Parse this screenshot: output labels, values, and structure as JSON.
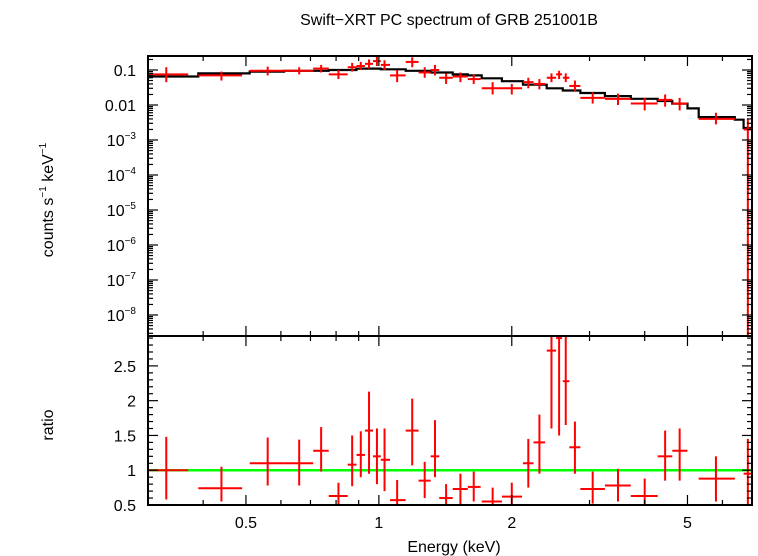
{
  "chart_data": {
    "title": "Swift−XRT PC spectrum of GRB 251001B",
    "xlabel": "Energy (keV)",
    "type": "scatter",
    "x_scale": "log",
    "xlim": [
      0.3,
      7.0
    ],
    "x_ticks": [
      {
        "value": 0.5,
        "label": "0.5"
      },
      {
        "value": 1,
        "label": "1"
      },
      {
        "value": 2,
        "label": "2"
      },
      {
        "value": 5,
        "label": "5"
      }
    ],
    "top_panel": {
      "ylabel": {
        "pre": "counts s",
        "sup1": "−1",
        "mid": " keV",
        "sup2": "−1"
      },
      "y_scale": "log",
      "ylim_log10": [
        -8.6,
        -0.6
      ],
      "y_ticks": [
        {
          "exp": -1,
          "base": "0.1",
          "sup": ""
        },
        {
          "exp": -2,
          "base": "0.01",
          "sup": ""
        },
        {
          "exp": -3,
          "base": "10",
          "sup": "−3"
        },
        {
          "exp": -4,
          "base": "10",
          "sup": "−4"
        },
        {
          "exp": -5,
          "base": "10",
          "sup": "−5"
        },
        {
          "exp": -6,
          "base": "10",
          "sup": "−6"
        },
        {
          "exp": -7,
          "base": "10",
          "sup": "−7"
        },
        {
          "exp": -8,
          "base": "10",
          "sup": "−8"
        }
      ],
      "data_series": {
        "name": "data",
        "color": "#ff0000",
        "points": [
          {
            "x": 0.33,
            "xlo": 0.3,
            "xhi": 0.37,
            "y": 0.075,
            "ylo": 0.045,
            "yhi": 0.12
          },
          {
            "x": 0.44,
            "xlo": 0.39,
            "xhi": 0.49,
            "y": 0.07,
            "ylo": 0.05,
            "yhi": 0.09
          },
          {
            "x": 0.56,
            "xlo": 0.51,
            "xhi": 0.61,
            "y": 0.095,
            "ylo": 0.07,
            "yhi": 0.125
          },
          {
            "x": 0.66,
            "xlo": 0.61,
            "xhi": 0.71,
            "y": 0.095,
            "ylo": 0.075,
            "yhi": 0.12
          },
          {
            "x": 0.74,
            "xlo": 0.71,
            "xhi": 0.77,
            "y": 0.11,
            "ylo": 0.085,
            "yhi": 0.14
          },
          {
            "x": 0.81,
            "xlo": 0.77,
            "xhi": 0.85,
            "y": 0.075,
            "ylo": 0.055,
            "yhi": 0.1
          },
          {
            "x": 0.87,
            "xlo": 0.85,
            "xhi": 0.89,
            "y": 0.12,
            "ylo": 0.09,
            "yhi": 0.16
          },
          {
            "x": 0.91,
            "xlo": 0.89,
            "xhi": 0.93,
            "y": 0.13,
            "ylo": 0.1,
            "yhi": 0.17
          },
          {
            "x": 0.95,
            "xlo": 0.93,
            "xhi": 0.97,
            "y": 0.15,
            "ylo": 0.11,
            "yhi": 0.2
          },
          {
            "x": 0.99,
            "xlo": 0.97,
            "xhi": 1.01,
            "y": 0.18,
            "ylo": 0.13,
            "yhi": 0.24
          },
          {
            "x": 1.03,
            "xlo": 1.01,
            "xhi": 1.06,
            "y": 0.14,
            "ylo": 0.1,
            "yhi": 0.19
          },
          {
            "x": 1.1,
            "xlo": 1.06,
            "xhi": 1.15,
            "y": 0.07,
            "ylo": 0.045,
            "yhi": 0.1
          },
          {
            "x": 1.19,
            "xlo": 1.15,
            "xhi": 1.23,
            "y": 0.17,
            "ylo": 0.12,
            "yhi": 0.23
          },
          {
            "x": 1.27,
            "xlo": 1.23,
            "xhi": 1.31,
            "y": 0.085,
            "ylo": 0.06,
            "yhi": 0.12
          },
          {
            "x": 1.34,
            "xlo": 1.31,
            "xhi": 1.37,
            "y": 0.1,
            "ylo": 0.07,
            "yhi": 0.14
          },
          {
            "x": 1.42,
            "xlo": 1.37,
            "xhi": 1.47,
            "y": 0.06,
            "ylo": 0.04,
            "yhi": 0.08
          },
          {
            "x": 1.53,
            "xlo": 1.47,
            "xhi": 1.59,
            "y": 0.065,
            "ylo": 0.045,
            "yhi": 0.085
          },
          {
            "x": 1.64,
            "xlo": 1.59,
            "xhi": 1.7,
            "y": 0.055,
            "ylo": 0.04,
            "yhi": 0.075
          },
          {
            "x": 1.81,
            "xlo": 1.71,
            "xhi": 1.9,
            "y": 0.03,
            "ylo": 0.02,
            "yhi": 0.045
          },
          {
            "x": 2.0,
            "xlo": 1.9,
            "xhi": 2.11,
            "y": 0.03,
            "ylo": 0.02,
            "yhi": 0.04
          },
          {
            "x": 2.18,
            "xlo": 2.12,
            "xhi": 2.24,
            "y": 0.045,
            "ylo": 0.03,
            "yhi": 0.06
          },
          {
            "x": 2.31,
            "xlo": 2.24,
            "xhi": 2.38,
            "y": 0.04,
            "ylo": 0.028,
            "yhi": 0.055
          },
          {
            "x": 2.46,
            "xlo": 2.4,
            "xhi": 2.52,
            "y": 0.06,
            "ylo": 0.045,
            "yhi": 0.08
          },
          {
            "x": 2.56,
            "xlo": 2.52,
            "xhi": 2.6,
            "y": 0.075,
            "ylo": 0.055,
            "yhi": 0.095
          },
          {
            "x": 2.65,
            "xlo": 2.61,
            "xhi": 2.7,
            "y": 0.06,
            "ylo": 0.045,
            "yhi": 0.08
          },
          {
            "x": 2.78,
            "xlo": 2.7,
            "xhi": 2.86,
            "y": 0.035,
            "ylo": 0.025,
            "yhi": 0.05
          },
          {
            "x": 3.05,
            "xlo": 2.86,
            "xhi": 3.25,
            "y": 0.016,
            "ylo": 0.011,
            "yhi": 0.023
          },
          {
            "x": 3.48,
            "xlo": 3.25,
            "xhi": 3.72,
            "y": 0.015,
            "ylo": 0.01,
            "yhi": 0.021
          },
          {
            "x": 4.0,
            "xlo": 3.72,
            "xhi": 4.28,
            "y": 0.011,
            "ylo": 0.007,
            "yhi": 0.016
          },
          {
            "x": 4.45,
            "xlo": 4.28,
            "xhi": 4.62,
            "y": 0.014,
            "ylo": 0.009,
            "yhi": 0.02
          },
          {
            "x": 4.8,
            "xlo": 4.62,
            "xhi": 5.0,
            "y": 0.011,
            "ylo": 0.007,
            "yhi": 0.016
          },
          {
            "x": 5.8,
            "xlo": 5.3,
            "xhi": 6.4,
            "y": 0.004,
            "ylo": 0.0028,
            "yhi": 0.006
          },
          {
            "x": 6.85,
            "xlo": 6.7,
            "xhi": 7.0,
            "y": 0.002,
            "ylo": 2.5e-09,
            "yhi": 0.004
          }
        ]
      },
      "model_series": {
        "name": "model",
        "color": "#000000",
        "steps": [
          {
            "xlo": 0.3,
            "xhi": 0.39,
            "y": 0.065
          },
          {
            "xlo": 0.39,
            "xhi": 0.51,
            "y": 0.08
          },
          {
            "xlo": 0.51,
            "xhi": 0.61,
            "y": 0.09
          },
          {
            "xlo": 0.61,
            "xhi": 0.77,
            "y": 0.095
          },
          {
            "xlo": 0.77,
            "xhi": 0.89,
            "y": 0.1
          },
          {
            "xlo": 0.89,
            "xhi": 1.01,
            "y": 0.11
          },
          {
            "xlo": 1.01,
            "xhi": 1.15,
            "y": 0.105
          },
          {
            "xlo": 1.15,
            "xhi": 1.31,
            "y": 0.095
          },
          {
            "xlo": 1.31,
            "xhi": 1.47,
            "y": 0.085
          },
          {
            "xlo": 1.47,
            "xhi": 1.59,
            "y": 0.075
          },
          {
            "xlo": 1.59,
            "xhi": 1.71,
            "y": 0.07
          },
          {
            "xlo": 1.71,
            "xhi": 1.9,
            "y": 0.058
          },
          {
            "xlo": 1.9,
            "xhi": 2.12,
            "y": 0.048
          },
          {
            "xlo": 2.12,
            "xhi": 2.4,
            "y": 0.038
          },
          {
            "xlo": 2.4,
            "xhi": 2.61,
            "y": 0.03
          },
          {
            "xlo": 2.61,
            "xhi": 2.86,
            "y": 0.026
          },
          {
            "xlo": 2.86,
            "xhi": 3.25,
            "y": 0.022
          },
          {
            "xlo": 3.25,
            "xhi": 3.72,
            "y": 0.018
          },
          {
            "xlo": 3.72,
            "xhi": 4.28,
            "y": 0.015
          },
          {
            "xlo": 4.28,
            "xhi": 4.62,
            "y": 0.013
          },
          {
            "xlo": 4.62,
            "xhi": 5.0,
            "y": 0.011
          },
          {
            "xlo": 5.0,
            "xhi": 5.3,
            "y": 0.008
          },
          {
            "xlo": 5.3,
            "xhi": 6.4,
            "y": 0.0045
          },
          {
            "xlo": 6.4,
            "xhi": 6.7,
            "y": 0.0038
          },
          {
            "xlo": 6.7,
            "xhi": 7.0,
            "y": 0.0022
          }
        ]
      }
    },
    "bottom_panel": {
      "ylabel": "ratio",
      "y_scale": "linear",
      "ylim": [
        0.5,
        2.93
      ],
      "y_ticks": [
        {
          "value": 0.5,
          "label": "0.5"
        },
        {
          "value": 1,
          "label": "1"
        },
        {
          "value": 1.5,
          "label": "1.5"
        },
        {
          "value": 2,
          "label": "2"
        },
        {
          "value": 2.5,
          "label": "2.5"
        }
      ],
      "reference_line": {
        "y": 1.0,
        "color": "#00ff00"
      },
      "ratio_series": {
        "name": "ratio",
        "color": "#ff0000",
        "points": [
          {
            "x": 0.33,
            "xlo": 0.3,
            "xhi": 0.37,
            "y": 1.0,
            "ylo": 0.58,
            "yhi": 1.48
          },
          {
            "x": 0.44,
            "xlo": 0.39,
            "xhi": 0.49,
            "y": 0.74,
            "ylo": 0.55,
            "yhi": 1.05
          },
          {
            "x": 0.56,
            "xlo": 0.51,
            "xhi": 0.61,
            "y": 1.1,
            "ylo": 0.78,
            "yhi": 1.47
          },
          {
            "x": 0.66,
            "xlo": 0.61,
            "xhi": 0.71,
            "y": 1.1,
            "ylo": 0.78,
            "yhi": 1.44
          },
          {
            "x": 0.74,
            "xlo": 0.71,
            "xhi": 0.77,
            "y": 1.28,
            "ylo": 0.98,
            "yhi": 1.62
          },
          {
            "x": 0.81,
            "xlo": 0.77,
            "xhi": 0.85,
            "y": 0.63,
            "ylo": 0.5,
            "yhi": 0.82
          },
          {
            "x": 0.87,
            "xlo": 0.85,
            "xhi": 0.89,
            "y": 1.08,
            "ylo": 0.77,
            "yhi": 1.5
          },
          {
            "x": 0.91,
            "xlo": 0.89,
            "xhi": 0.93,
            "y": 1.22,
            "ylo": 0.9,
            "yhi": 1.56
          },
          {
            "x": 0.95,
            "xlo": 0.93,
            "xhi": 0.97,
            "y": 1.57,
            "ylo": 0.95,
            "yhi": 2.13
          },
          {
            "x": 0.99,
            "xlo": 0.97,
            "xhi": 1.01,
            "y": 1.2,
            "ylo": 0.8,
            "yhi": 1.6
          },
          {
            "x": 1.03,
            "xlo": 1.01,
            "xhi": 1.06,
            "y": 1.15,
            "ylo": 0.7,
            "yhi": 1.6
          },
          {
            "x": 1.1,
            "xlo": 1.06,
            "xhi": 1.15,
            "y": 0.57,
            "ylo": 0.5,
            "yhi": 0.86
          },
          {
            "x": 1.19,
            "xlo": 1.15,
            "xhi": 1.23,
            "y": 1.57,
            "ylo": 1.07,
            "yhi": 2.03
          },
          {
            "x": 1.27,
            "xlo": 1.23,
            "xhi": 1.31,
            "y": 0.85,
            "ylo": 0.6,
            "yhi": 1.12
          },
          {
            "x": 1.34,
            "xlo": 1.31,
            "xhi": 1.37,
            "y": 1.2,
            "ylo": 0.9,
            "yhi": 1.72
          },
          {
            "x": 1.42,
            "xlo": 1.37,
            "xhi": 1.47,
            "y": 0.6,
            "ylo": 0.5,
            "yhi": 0.8
          },
          {
            "x": 1.53,
            "xlo": 1.47,
            "xhi": 1.59,
            "y": 0.73,
            "ylo": 0.5,
            "yhi": 0.95
          },
          {
            "x": 1.64,
            "xlo": 1.59,
            "xhi": 1.7,
            "y": 0.76,
            "ylo": 0.55,
            "yhi": 0.98
          },
          {
            "x": 1.81,
            "xlo": 1.71,
            "xhi": 1.9,
            "y": 0.55,
            "ylo": 0.5,
            "yhi": 0.75
          },
          {
            "x": 2.0,
            "xlo": 1.9,
            "xhi": 2.11,
            "y": 0.62,
            "ylo": 0.5,
            "yhi": 0.82
          },
          {
            "x": 2.18,
            "xlo": 2.12,
            "xhi": 2.24,
            "y": 1.1,
            "ylo": 0.75,
            "yhi": 1.45
          },
          {
            "x": 2.31,
            "xlo": 2.24,
            "xhi": 2.38,
            "y": 1.4,
            "ylo": 0.95,
            "yhi": 1.8
          },
          {
            "x": 2.46,
            "xlo": 2.4,
            "xhi": 2.52,
            "y": 2.72,
            "ylo": 1.6,
            "yhi": 2.93
          },
          {
            "x": 2.56,
            "xlo": 2.52,
            "xhi": 2.6,
            "y": 2.9,
            "ylo": 1.5,
            "yhi": 2.93
          },
          {
            "x": 2.65,
            "xlo": 2.61,
            "xhi": 2.7,
            "y": 2.28,
            "ylo": 1.65,
            "yhi": 2.93
          },
          {
            "x": 2.78,
            "xlo": 2.7,
            "xhi": 2.86,
            "y": 1.33,
            "ylo": 0.95,
            "yhi": 1.7
          },
          {
            "x": 3.05,
            "xlo": 2.86,
            "xhi": 3.25,
            "y": 0.73,
            "ylo": 0.52,
            "yhi": 0.98
          },
          {
            "x": 3.48,
            "xlo": 3.25,
            "xhi": 3.72,
            "y": 0.78,
            "ylo": 0.55,
            "yhi": 1.02
          },
          {
            "x": 4.0,
            "xlo": 3.72,
            "xhi": 4.28,
            "y": 0.63,
            "ylo": 0.5,
            "yhi": 0.88
          },
          {
            "x": 4.45,
            "xlo": 4.28,
            "xhi": 4.62,
            "y": 1.2,
            "ylo": 0.85,
            "yhi": 1.57
          },
          {
            "x": 4.8,
            "xlo": 4.62,
            "xhi": 5.0,
            "y": 1.28,
            "ylo": 0.85,
            "yhi": 1.6
          },
          {
            "x": 5.8,
            "xlo": 5.3,
            "xhi": 6.4,
            "y": 0.88,
            "ylo": 0.55,
            "yhi": 1.2
          },
          {
            "x": 6.85,
            "xlo": 6.7,
            "xhi": 7.0,
            "y": 0.95,
            "ylo": 0.5,
            "yhi": 1.45
          }
        ]
      }
    }
  }
}
